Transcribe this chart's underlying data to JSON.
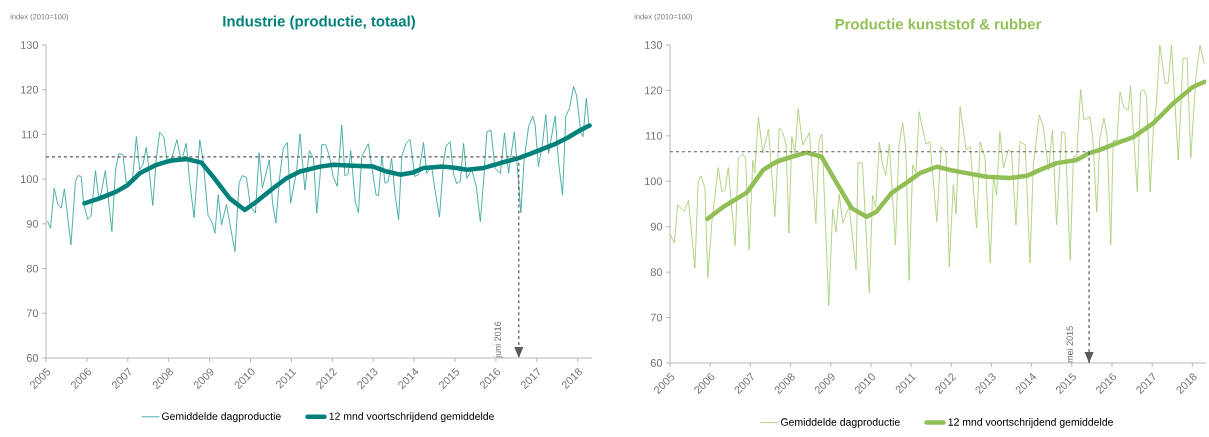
{
  "chart_data": [
    {
      "type": "line",
      "title": "Industrie (productie, totaal)",
      "ylabel": "index (2010=100)",
      "xlim": [
        2005,
        2018.35
      ],
      "ylim": [
        60,
        130
      ],
      "xticks": [
        2005,
        2006,
        2007,
        2008,
        2009,
        2010,
        2011,
        2012,
        2013,
        2014,
        2015,
        2016,
        2017,
        2018
      ],
      "yticks": [
        60,
        70,
        80,
        90,
        100,
        110,
        120,
        130
      ],
      "legend": "bottom",
      "ref_lines": [
        {
          "axis": "y",
          "value": 105,
          "color": "#595959",
          "line_style": "dashed"
        },
        {
          "axis": "x",
          "value": 2016.56,
          "label": "juni 2016",
          "color": "#595959",
          "line_style": "dashed"
        }
      ],
      "series": [
        {
          "name": "Gemiddelde dagproductie",
          "color": "#3aa6a0",
          "x": [
            2005.04,
            2005.11,
            2005.2,
            2005.29,
            2005.37,
            2005.45,
            2005.61,
            2005.72,
            2005.78,
            2005.86,
            2005.92,
            2006.02,
            2006.1,
            2006.21,
            2006.29,
            2006.35,
            2006.45,
            2006.61,
            2006.7,
            2006.78,
            2006.88,
            2006.96,
            2007.11,
            2007.21,
            2007.29,
            2007.37,
            2007.45,
            2007.52,
            2007.61,
            2007.7,
            2007.78,
            2007.88,
            2007.97,
            2008.04,
            2008.2,
            2008.31,
            2008.43,
            2008.51,
            2008.62,
            2008.76,
            2008.84,
            2008.96,
            2009.08,
            2009.13,
            2009.21,
            2009.29,
            2009.41,
            2009.62,
            2009.72,
            2009.8,
            2009.9,
            2010.0,
            2010.12,
            2010.21,
            2010.29,
            2010.46,
            2010.54,
            2010.62,
            2010.72,
            2010.8,
            2010.9,
            2010.98,
            2011.13,
            2011.21,
            2011.33,
            2011.44,
            2011.54,
            2011.62,
            2011.7,
            2011.74,
            2011.84,
            2011.93,
            2012.02,
            2012.12,
            2012.23,
            2012.31,
            2012.39,
            2012.45,
            2012.56,
            2012.64,
            2012.72,
            2012.88,
            2013.0,
            2013.07,
            2013.13,
            2013.21,
            2013.29,
            2013.37,
            2013.45,
            2013.53,
            2013.62,
            2013.7,
            2013.8,
            2013.9,
            2014.02,
            2014.11,
            2014.23,
            2014.31,
            2014.43,
            2014.51,
            2014.62,
            2014.72,
            2014.78,
            2014.88,
            2014.96,
            2015.04,
            2015.13,
            2015.21,
            2015.29,
            2015.41,
            2015.52,
            2015.62,
            2015.7,
            2015.78,
            2015.88,
            2015.98,
            2016.11,
            2016.21,
            2016.31,
            2016.45,
            2016.51,
            2016.61,
            2016.69,
            2016.8,
            2016.9,
            2016.96,
            2017.04,
            2017.13,
            2017.22,
            2017.29,
            2017.45,
            2017.53,
            2017.63,
            2017.71,
            2017.8,
            2017.9,
            2017.97,
            2018.08,
            2018.13,
            2018.21,
            2018.28
          ],
          "values": [
            90.5,
            89,
            98,
            94.3,
            93.5,
            97.8,
            85.3,
            99.5,
            100.8,
            100.6,
            94.6,
            91,
            91.7,
            101.9,
            95.7,
            96.9,
            101.9,
            88.3,
            102.1,
            105.7,
            105.5,
            99.3,
            99.5,
            109.5,
            102.1,
            103.2,
            107.1,
            102.1,
            94.1,
            105,
            110.5,
            109.4,
            103.6,
            103.6,
            108.8,
            103.9,
            108,
            99.7,
            91.4,
            108.8,
            104.3,
            92,
            89.8,
            87.9,
            96.5,
            89.8,
            94.3,
            83.8,
            99.1,
            100.8,
            100.4,
            93.9,
            92.4,
            105.9,
            98,
            104.3,
            94.6,
            90.2,
            101,
            106.9,
            108.2,
            94.6,
            102.1,
            110.1,
            97.6,
            106.4,
            104.7,
            92.4,
            100.6,
            107.7,
            107.7,
            105.1,
            100.6,
            98.4,
            112.1,
            100.7,
            101.3,
            106.4,
            95,
            92.5,
            105.1,
            107.9,
            100.6,
            96.5,
            96.3,
            105.1,
            99.1,
            99.5,
            104.7,
            96.9,
            90.9,
            105.1,
            108,
            108.9,
            100.6,
            101,
            108.2,
            101.3,
            102.8,
            97.6,
            91.5,
            103.9,
            107.4,
            108.4,
            101.3,
            99,
            99.5,
            108,
            100.2,
            102.1,
            98.4,
            90.5,
            99.8,
            110.6,
            110.9,
            102.4,
            101.3,
            110.3,
            101.3,
            110.6,
            104.3,
            92.5,
            104.3,
            111.8,
            114.1,
            112.1,
            102.8,
            107.3,
            114.4,
            105.8,
            114.1,
            103.9,
            96.5,
            114.1,
            115.9,
            120.7,
            118.8,
            110.3,
            109.5,
            118.1,
            111.8
          ]
        },
        {
          "name": "12 mnd voortschrijdend gemiddelde",
          "color": "#00807a",
          "x": [
            2005.94,
            2006.31,
            2006.72,
            2007.0,
            2007.29,
            2007.7,
            2008.02,
            2008.43,
            2008.8,
            2009.08,
            2009.49,
            2009.86,
            2010.15,
            2010.56,
            2010.88,
            2011.21,
            2011.7,
            2012.02,
            2012.51,
            2013.0,
            2013.33,
            2013.66,
            2013.98,
            2014.23,
            2014.72,
            2015.04,
            2015.29,
            2015.7,
            2016.11,
            2016.56,
            2016.93,
            2017.41,
            2017.74,
            2018.07,
            2018.29
          ],
          "values": [
            94.6,
            95.7,
            97.2,
            98.7,
            101.3,
            103.2,
            104.1,
            104.5,
            103.7,
            100.6,
            95.7,
            93.1,
            95,
            98,
            100.2,
            101.7,
            102.8,
            103.2,
            103,
            102.8,
            101.7,
            101,
            101.5,
            102.5,
            102.8,
            102.5,
            102.1,
            102.5,
            103.6,
            104.7,
            106,
            107.7,
            109.2,
            111,
            112
          ]
        }
      ]
    },
    {
      "type": "line",
      "title": "Productie kunststof & rubber",
      "ylabel": "index (2010=100)",
      "xlim": [
        2005,
        2018.34
      ],
      "ylim": [
        60,
        130
      ],
      "xticks": [
        2005,
        2006,
        2007,
        2008,
        2009,
        2010,
        2011,
        2012,
        2013,
        2014,
        2015,
        2016,
        2017,
        2018
      ],
      "yticks": [
        60,
        70,
        80,
        90,
        100,
        110,
        120,
        130
      ],
      "legend": "bottom",
      "ref_lines": [
        {
          "axis": "y",
          "value": 106.5,
          "color": "#595959",
          "line_style": "dashed"
        },
        {
          "axis": "x",
          "value": 2015.43,
          "label": "mei 2015",
          "color": "#595959",
          "line_style": "dashed"
        }
      ],
      "series": [
        {
          "name": "Gemiddelde dagproductie",
          "color": "#a9cf78",
          "x": [
            2005.0,
            2005.11,
            2005.19,
            2005.35,
            2005.46,
            2005.62,
            2005.7,
            2005.77,
            2005.87,
            2005.94,
            2006.04,
            2006.2,
            2006.29,
            2006.37,
            2006.45,
            2006.62,
            2006.7,
            2006.81,
            2006.88,
            2006.97,
            2007.06,
            2007.11,
            2007.2,
            2007.31,
            2007.45,
            2007.61,
            2007.72,
            2007.8,
            2007.89,
            2007.96,
            2008.03,
            2008.11,
            2008.19,
            2008.3,
            2008.47,
            2008.63,
            2008.71,
            2008.78,
            2008.95,
            2009.05,
            2009.13,
            2009.21,
            2009.3,
            2009.46,
            2009.63,
            2009.68,
            2009.79,
            2009.96,
            2010.04,
            2010.12,
            2010.21,
            2010.29,
            2010.37,
            2010.46,
            2010.61,
            2010.7,
            2010.79,
            2010.87,
            2010.95,
            2011.04,
            2011.12,
            2011.2,
            2011.37,
            2011.47,
            2011.64,
            2011.75,
            2011.87,
            2011.95,
            2012.05,
            2012.12,
            2012.22,
            2012.37,
            2012.47,
            2012.63,
            2012.72,
            2012.84,
            2012.97,
            2013.05,
            2013.13,
            2013.21,
            2013.3,
            2013.42,
            2013.5,
            2013.61,
            2013.71,
            2013.84,
            2013.96,
            2014.04,
            2014.19,
            2014.29,
            2014.42,
            2014.52,
            2014.62,
            2014.75,
            2014.83,
            2014.96,
            2015.04,
            2015.12,
            2015.22,
            2015.3,
            2015.45,
            2015.52,
            2015.62,
            2015.7,
            2015.8,
            2015.88,
            2015.97,
            2016.03,
            2016.12,
            2016.2,
            2016.3,
            2016.41,
            2016.46,
            2016.53,
            2016.63,
            2016.71,
            2016.79,
            2016.86,
            2016.95,
            2017.03,
            2017.11,
            2017.19,
            2017.32,
            2017.4,
            2017.48,
            2017.65,
            2017.77,
            2017.87,
            2017.96,
            2018.09,
            2018.19,
            2018.29
          ],
          "values": [
            88.4,
            86.4,
            94.8,
            93.3,
            95.8,
            80.9,
            99.9,
            101.2,
            98.5,
            78.7,
            90.8,
            103,
            97.7,
            98.1,
            103,
            85.8,
            105.1,
            106,
            105.1,
            84.9,
            104.6,
            101.9,
            114.2,
            106.2,
            111.5,
            92.2,
            111.7,
            110.9,
            108,
            88.6,
            109.8,
            106.2,
            116,
            108,
            110.7,
            90.8,
            109.1,
            110.4,
            72.6,
            93.9,
            88.8,
            97.2,
            90.8,
            94.4,
            80.5,
            104.1,
            104,
            75.4,
            96.9,
            94.3,
            108.6,
            103.6,
            101.3,
            108.2,
            86,
            108,
            112.9,
            106.8,
            78.2,
            103.6,
            101.9,
            115.3,
            108.2,
            108.7,
            91.1,
            107.6,
            106.2,
            81.1,
            99.2,
            92.8,
            116.4,
            106.9,
            107.6,
            89.7,
            108.7,
            105.1,
            82,
            101,
            97,
            110.9,
            102.9,
            106.9,
            106.5,
            90.4,
            108.7,
            108,
            82,
            103.2,
            114.6,
            112,
            102.5,
            111.3,
            90.4,
            110.9,
            110.6,
            82.7,
            105.4,
            105.4,
            120.2,
            113.5,
            114.2,
            109.8,
            93.3,
            109.5,
            113.9,
            109.8,
            86,
            109.1,
            108.7,
            119.7,
            116.1,
            115.7,
            121,
            111.3,
            97.7,
            119.7,
            120.2,
            118.6,
            97.7,
            111.3,
            117.5,
            130,
            121.6,
            121.6,
            130,
            104.7,
            127.1,
            127.1,
            105.1,
            123,
            130,
            126
          ]
        },
        {
          "name": "12 mnd voortschrijdend gemiddelde",
          "color": "#92bf55",
          "x": [
            2005.93,
            2006.33,
            2006.91,
            2007.32,
            2007.65,
            2008.03,
            2008.4,
            2008.77,
            2009.15,
            2009.52,
            2009.89,
            2010.14,
            2010.51,
            2010.89,
            2011.22,
            2011.64,
            2011.97,
            2012.38,
            2012.88,
            2013.46,
            2013.88,
            2014.21,
            2014.62,
            2015.12,
            2015.43,
            2015.7,
            2016.12,
            2016.53,
            2017.03,
            2017.53,
            2018.02,
            2018.31
          ],
          "values": [
            91.7,
            94.4,
            97.5,
            102.5,
            104.3,
            105.4,
            106.3,
            105.4,
            99.6,
            94.1,
            92.2,
            93.3,
            97.4,
            99.7,
            101.8,
            103.2,
            102.5,
            101.8,
            101,
            100.7,
            101.2,
            102.5,
            104,
            104.7,
            106.2,
            106.9,
            108.4,
            109.7,
            112.8,
            117.2,
            120.8,
            121.9
          ]
        }
      ]
    }
  ]
}
